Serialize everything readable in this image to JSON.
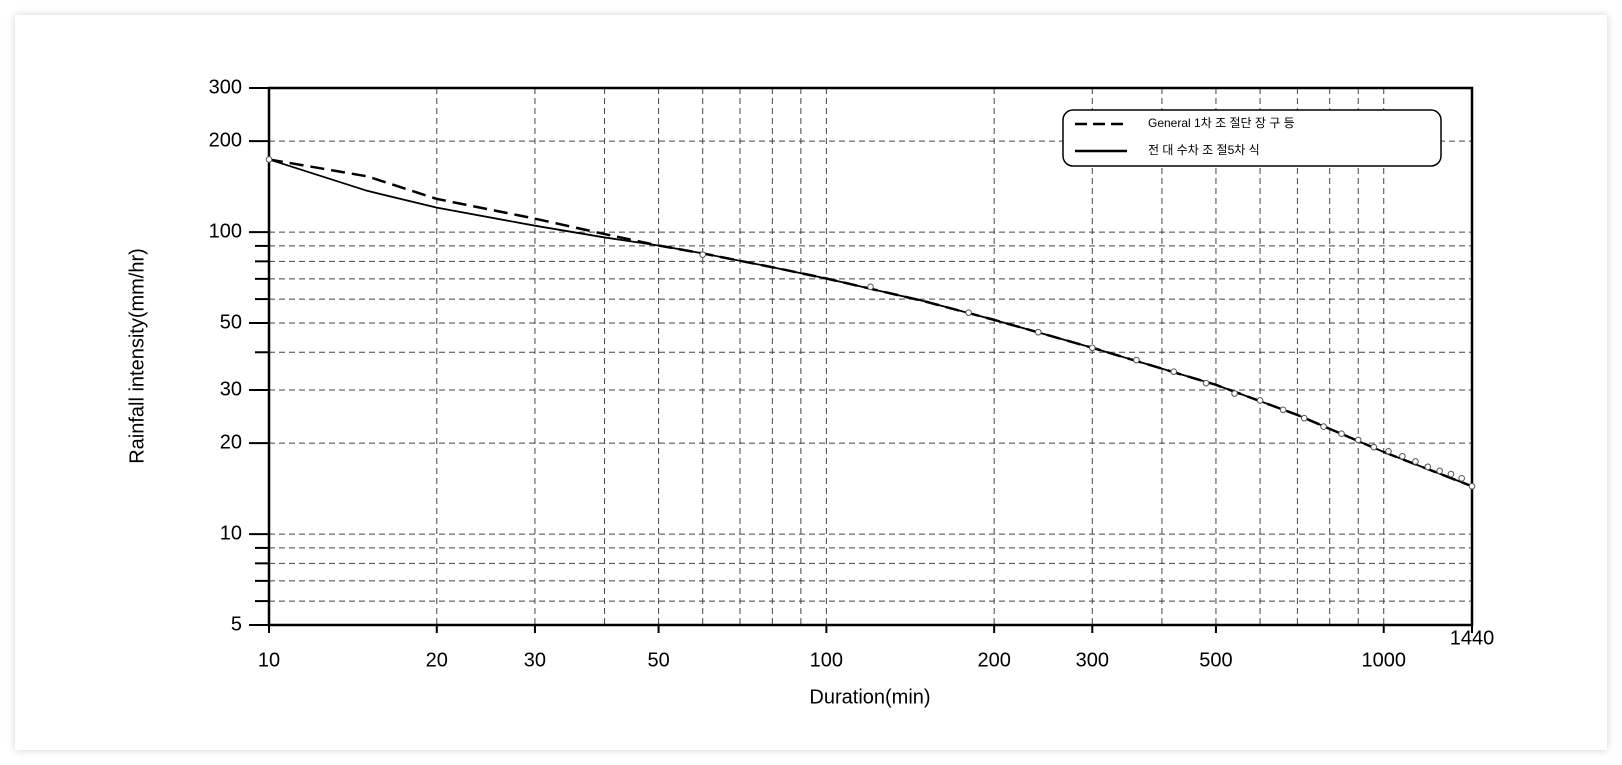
{
  "chart_data": {
    "type": "line",
    "xlabel": "Duration(min)",
    "ylabel": "Rainfall intensity(mm/hr)",
    "xscale": "log",
    "yscale": "log",
    "grid": true,
    "legend": "upper right",
    "xlim": [
      10,
      1440
    ],
    "ylim": [
      5,
      300
    ],
    "xticks": [
      10,
      20,
      30,
      50,
      100,
      200,
      300,
      500,
      1000,
      1440
    ],
    "xminor": [
      40,
      60,
      70,
      80,
      90,
      400,
      600,
      700,
      800,
      900
    ],
    "yticks": [
      5,
      10,
      20,
      30,
      50,
      100,
      200,
      300
    ],
    "yminor": [
      6,
      7,
      8,
      9,
      40,
      60,
      70,
      80,
      90
    ],
    "series": [
      {
        "name": "General 1차 조 절단 장 구 등",
        "color": "#000000",
        "style": "dashed",
        "x": [
          10,
          15,
          20,
          30,
          40,
          50,
          60,
          80,
          100,
          150,
          200,
          300,
          500,
          700,
          1000,
          1440
        ],
        "values": [
          174,
          153,
          128.8,
          110.8,
          98.5,
          90.3,
          85,
          76.5,
          70.2,
          59,
          51.2,
          41.4,
          31.2,
          24.8,
          18.7,
          14.4
        ]
      },
      {
        "name": "전 대 수차 조 절5차 식",
        "color": "#000000",
        "style": "solid",
        "x": [
          10,
          15,
          20,
          30,
          40,
          50,
          60,
          80,
          100,
          150,
          200,
          300,
          500,
          700,
          1000,
          1440
        ],
        "values": [
          174,
          137,
          120.5,
          105,
          96,
          90.3,
          85,
          76.5,
          70.2,
          59,
          51.2,
          41.4,
          31.2,
          24.8,
          18.7,
          14.4
        ]
      }
    ],
    "points": {
      "color": "#555555",
      "x": [
        10,
        60,
        120,
        180,
        240,
        300,
        360,
        420,
        480,
        540,
        600,
        660,
        720,
        780,
        840,
        900,
        960,
        1020,
        1080,
        1140,
        1200,
        1260,
        1320,
        1380,
        1440
      ],
      "values": [
        174,
        84.2,
        65.9,
        54.1,
        46.6,
        41.4,
        37.7,
        34.5,
        31.6,
        29.2,
        27.7,
        25.8,
        24.2,
        22.7,
        21.5,
        20.5,
        19.4,
        18.8,
        18.1,
        17.4,
        16.7,
        16.2,
        15.8,
        15.3,
        14.4
      ]
    }
  }
}
